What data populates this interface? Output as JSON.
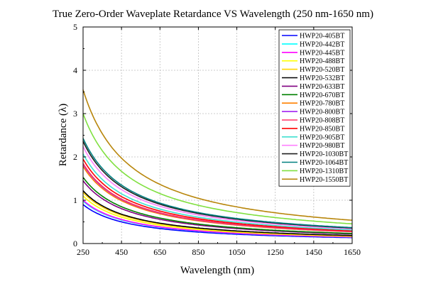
{
  "chart_data": {
    "type": "line",
    "title": "True Zero-Order Waveplate Retardance VS Wavelength (250 nm-1650 nm)",
    "xlabel": "Wavelength (nm)",
    "ylabel": "Retardance (λ)",
    "xlim": [
      250,
      1650
    ],
    "ylim": [
      0,
      5
    ],
    "xticks": [
      250,
      450,
      650,
      850,
      1050,
      1250,
      1450,
      1650
    ],
    "yticks": [
      0,
      1,
      2,
      3,
      4,
      5
    ],
    "grid": true,
    "legend_position": "top-right",
    "curve_model": "retardance = a / wavelength",
    "series": [
      {
        "name": "HWP20-405BT",
        "color": "#0000ff",
        "values": [
          [
            250,
            0.9
          ],
          [
            1650,
            0.136
          ]
        ]
      },
      {
        "name": "HWP20-442BT",
        "color": "#00ffff",
        "values": [
          [
            250,
            0.98
          ],
          [
            1650,
            0.148
          ]
        ]
      },
      {
        "name": "HWP20-445BT",
        "color": "#ff00ff",
        "values": [
          [
            250,
            1.0
          ],
          [
            1650,
            0.152
          ]
        ]
      },
      {
        "name": "HWP20-488BT",
        "color": "#ffff00",
        "values": [
          [
            250,
            1.1
          ],
          [
            1650,
            0.167
          ]
        ]
      },
      {
        "name": "HWP20-520BT",
        "color": "#ffd400",
        "values": [
          [
            250,
            1.18
          ],
          [
            1650,
            0.179
          ]
        ]
      },
      {
        "name": "HWP20-532BT",
        "color": "#000000",
        "values": [
          [
            250,
            1.22
          ],
          [
            1650,
            0.185
          ]
        ]
      },
      {
        "name": "HWP20-633BT",
        "color": "#800080",
        "values": [
          [
            250,
            1.45
          ],
          [
            1650,
            0.22
          ]
        ]
      },
      {
        "name": "HWP20-670BT",
        "color": "#008000",
        "values": [
          [
            250,
            1.53
          ],
          [
            1650,
            0.232
          ]
        ]
      },
      {
        "name": "HWP20-780BT",
        "color": "#ff8000",
        "values": [
          [
            250,
            1.78
          ],
          [
            1650,
            0.27
          ]
        ]
      },
      {
        "name": "HWP20-800BT",
        "color": "#a020f0",
        "values": [
          [
            250,
            1.83
          ],
          [
            1650,
            0.277
          ]
        ]
      },
      {
        "name": "HWP20-808BT",
        "color": "#ff3366",
        "values": [
          [
            250,
            1.85
          ],
          [
            1650,
            0.28
          ]
        ]
      },
      {
        "name": "HWP20-850BT",
        "color": "#ff0000",
        "values": [
          [
            250,
            1.95
          ],
          [
            1650,
            0.295
          ]
        ]
      },
      {
        "name": "HWP20-905BT",
        "color": "#40e0d0",
        "values": [
          [
            250,
            2.07
          ],
          [
            1650,
            0.314
          ]
        ]
      },
      {
        "name": "HWP20-980BT",
        "color": "#ff80ff",
        "values": [
          [
            250,
            2.24
          ],
          [
            1650,
            0.34
          ]
        ]
      },
      {
        "name": "HWP20-1030BT",
        "color": "#202020",
        "values": [
          [
            250,
            2.36
          ],
          [
            1650,
            0.357
          ]
        ]
      },
      {
        "name": "HWP20-1064BT",
        "color": "#008080",
        "values": [
          [
            250,
            2.43
          ],
          [
            1650,
            0.368
          ]
        ]
      },
      {
        "name": "HWP20-1310BT",
        "color": "#80e040",
        "values": [
          [
            250,
            3.0
          ],
          [
            1650,
            0.455
          ]
        ]
      },
      {
        "name": "HWP20-1550BT",
        "color": "#b8860b",
        "values": [
          [
            250,
            3.55
          ],
          [
            1650,
            0.538
          ]
        ]
      }
    ]
  }
}
